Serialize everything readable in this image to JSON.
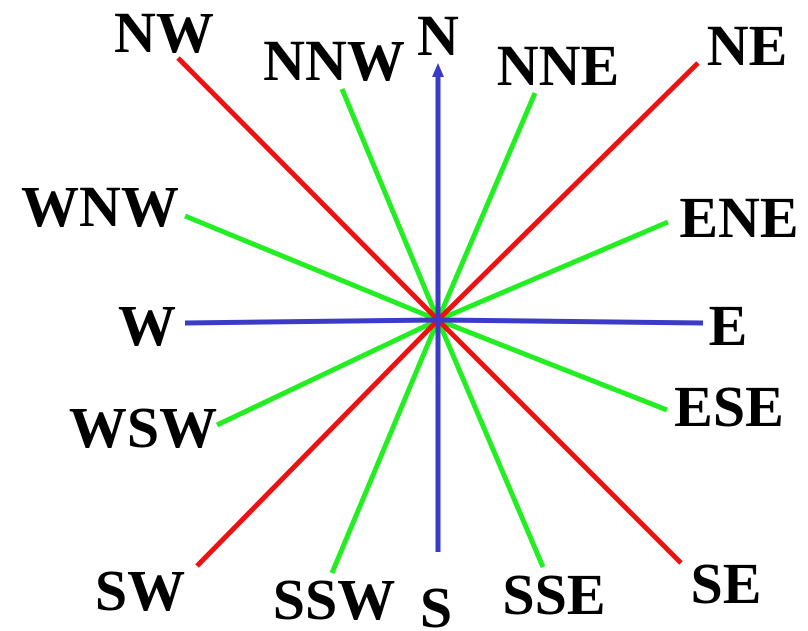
{
  "colors": {
    "cardinal": "#3b3bc8",
    "intercardinal": "#ee1111",
    "secondary": "#22ee22",
    "text": "#000000",
    "background": "#ffffff"
  },
  "rays": [
    {
      "kind": "cardinal",
      "label": "N",
      "has_arrow": true
    },
    {
      "kind": "cardinal",
      "label": "E",
      "has_arrow": false
    },
    {
      "kind": "cardinal",
      "label": "S",
      "has_arrow": false
    },
    {
      "kind": "cardinal",
      "label": "W",
      "has_arrow": false
    },
    {
      "kind": "intercardinal",
      "label": "NE",
      "has_arrow": false
    },
    {
      "kind": "intercardinal",
      "label": "SE",
      "has_arrow": false
    },
    {
      "kind": "intercardinal",
      "label": "SW",
      "has_arrow": false
    },
    {
      "kind": "intercardinal",
      "label": "NW",
      "has_arrow": false
    },
    {
      "kind": "secondary",
      "label": "NNE",
      "has_arrow": false
    },
    {
      "kind": "secondary",
      "label": "ENE",
      "has_arrow": false
    },
    {
      "kind": "secondary",
      "label": "ESE",
      "has_arrow": false
    },
    {
      "kind": "secondary",
      "label": "SSE",
      "has_arrow": false
    },
    {
      "kind": "secondary",
      "label": "SSW",
      "has_arrow": false
    },
    {
      "kind": "secondary",
      "label": "WSW",
      "has_arrow": false
    },
    {
      "kind": "secondary",
      "label": "WNW",
      "has_arrow": false
    },
    {
      "kind": "secondary",
      "label": "NNW",
      "has_arrow": false
    }
  ]
}
